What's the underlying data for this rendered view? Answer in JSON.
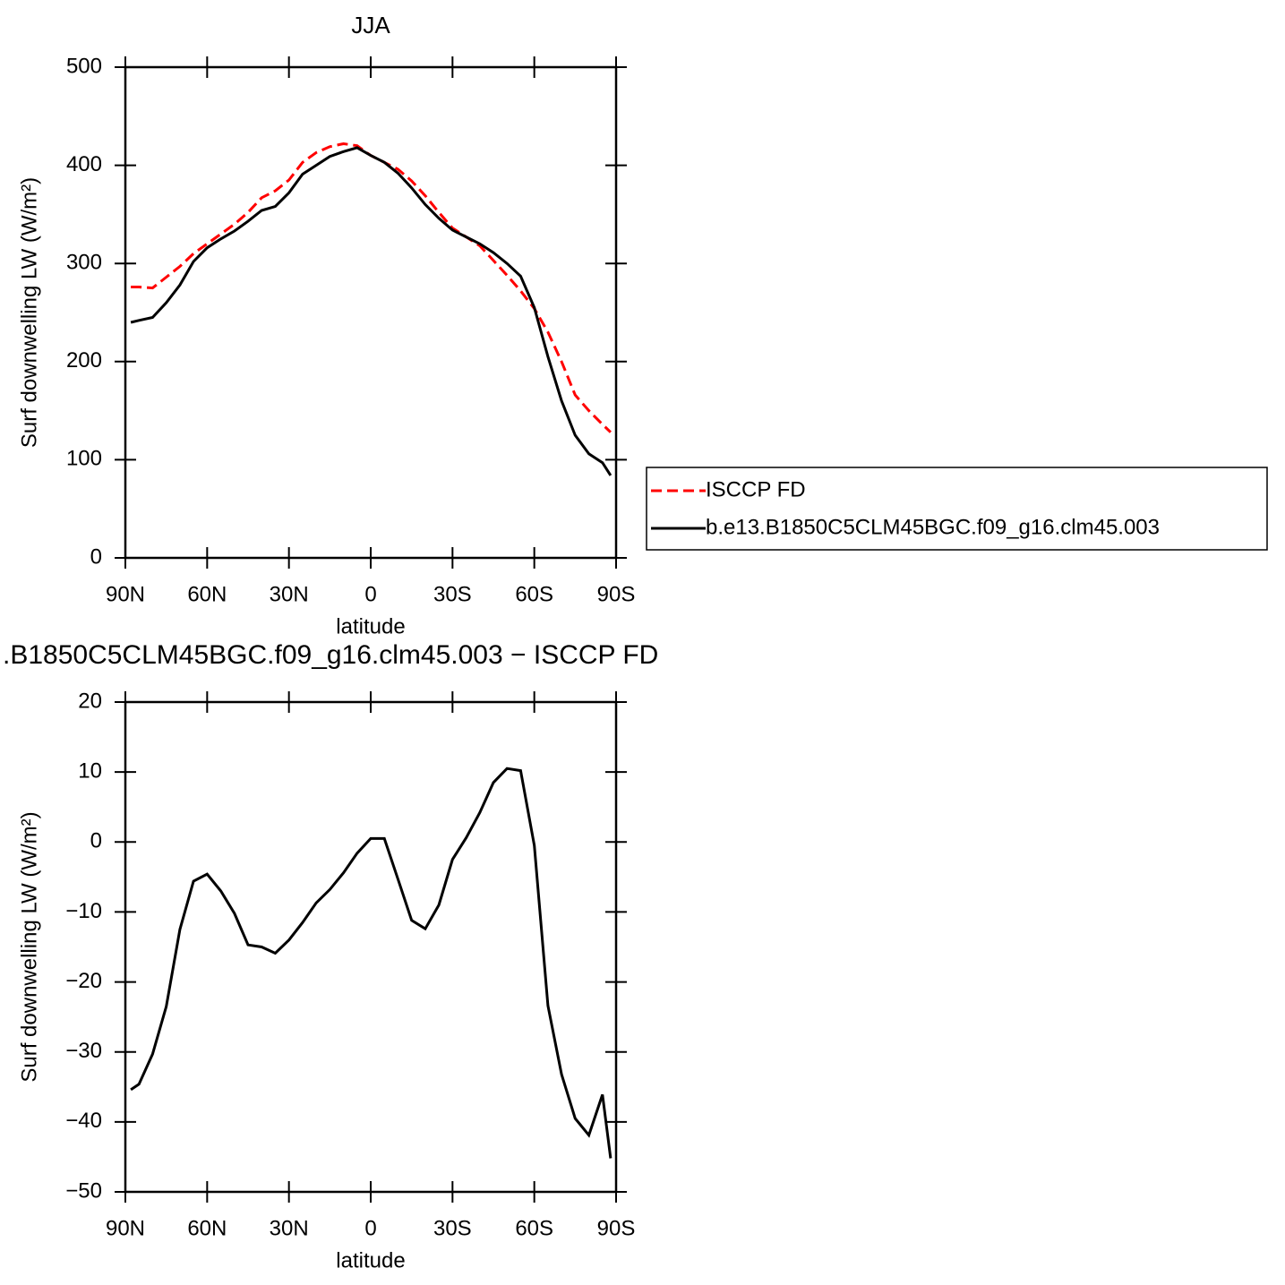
{
  "chart_data": [
    {
      "type": "line",
      "title": "JJA",
      "x_label": "latitude",
      "y_label": "Surf downwelling LW (W/m²)",
      "x": [
        88,
        85,
        80,
        75,
        70,
        65,
        60,
        55,
        50,
        45,
        40,
        35,
        30,
        25,
        20,
        15,
        10,
        5,
        0,
        -5,
        -10,
        -15,
        -20,
        -25,
        -30,
        -35,
        -40,
        -45,
        -50,
        -55,
        -60,
        -65,
        -70,
        -75,
        -80,
        -85,
        -88
      ],
      "series": [
        {
          "name": "ISCCP FD",
          "color": "#ff0000",
          "style": "dashed",
          "values": [
            276,
            276,
            275,
            286,
            297,
            310,
            320,
            330,
            340,
            352,
            367,
            374,
            385,
            403,
            413,
            419,
            422,
            420,
            410,
            403,
            396,
            384,
            369,
            352,
            336,
            327,
            318,
            303,
            288,
            272,
            254,
            230,
            200,
            166,
            150,
            136,
            128
          ]
        },
        {
          "name": "b.e13.B1850C5CLM45BGC.f09_g16.clm45.003",
          "color": "#000000",
          "style": "solid",
          "values": [
            240,
            242,
            245,
            260,
            278,
            302,
            316,
            325,
            333,
            343,
            354,
            358,
            372,
            391,
            400,
            409,
            414,
            418,
            410,
            403,
            392,
            377,
            360,
            346,
            334,
            327,
            320,
            311,
            300,
            287,
            255,
            205,
            160,
            125,
            106,
            97,
            84
          ]
        }
      ],
      "xlim": [
        90,
        -90
      ],
      "ylim": [
        0,
        500
      ],
      "xticks": [
        {
          "value": 90,
          "label": "90N"
        },
        {
          "value": 60,
          "label": "60N"
        },
        {
          "value": 30,
          "label": "30N"
        },
        0,
        {
          "value": -30,
          "label": "30S"
        },
        {
          "value": -60,
          "label": "60S"
        },
        {
          "value": -90,
          "label": "90S"
        }
      ],
      "yticks": [
        0,
        100,
        200,
        300,
        400,
        500
      ],
      "legend": "right"
    },
    {
      "type": "line",
      "title": ".B1850C5CLM45BGC.f09_g16.clm45.003 − ISCCP FD",
      "x_label": "latitude",
      "y_label": "Surf downwelling LW (W/m²)",
      "x": [
        88,
        85,
        80,
        75,
        70,
        65,
        60,
        55,
        50,
        45,
        40,
        35,
        30,
        25,
        20,
        15,
        10,
        5,
        0,
        -5,
        -10,
        -15,
        -20,
        -25,
        -30,
        -35,
        -40,
        -45,
        -50,
        -55,
        -60,
        -65,
        -70,
        -75,
        -80,
        -85,
        -88
      ],
      "values": [
        -35.4,
        -34.6,
        -30.3,
        -23.5,
        -12.5,
        -5.6,
        -4.6,
        -7.0,
        -10.2,
        -14.7,
        -15,
        -15.9,
        -14,
        -11.5,
        -8.7,
        -6.8,
        -4.4,
        -1.6,
        0.5,
        0.5,
        -5.3,
        -11.2,
        -12.4,
        -9,
        -2.5,
        0.6,
        4.2,
        8.5,
        10.5,
        10.2,
        -0.5,
        -23.4,
        -33.2,
        -39.5,
        -41.9,
        -36.1,
        -45.2
      ],
      "color": "#000000",
      "xlim": [
        90,
        -90
      ],
      "ylim": [
        -50,
        20
      ],
      "xticks": [
        {
          "value": 90,
          "label": "90N"
        },
        {
          "value": 60,
          "label": "60N"
        },
        {
          "value": 30,
          "label": "30N"
        },
        0,
        {
          "value": -30,
          "label": "30S"
        },
        {
          "value": -60,
          "label": "60S"
        },
        {
          "value": -90,
          "label": "90S"
        }
      ],
      "yticks": [
        -50,
        -40,
        -30,
        -20,
        -10,
        0,
        10,
        20
      ]
    }
  ]
}
